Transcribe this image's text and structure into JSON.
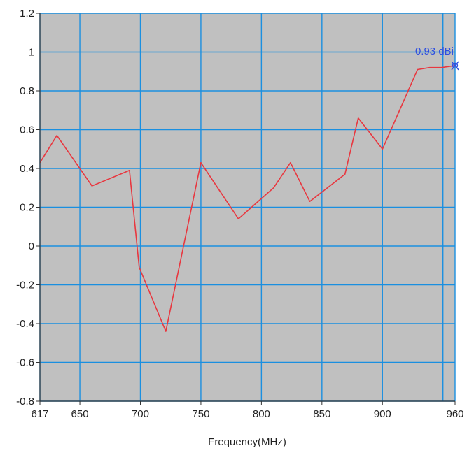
{
  "chart_data": {
    "type": "line",
    "xlabel": "Frequency(MHz)",
    "ylabel": "",
    "xlim": [
      617,
      960
    ],
    "ylim": [
      -0.8,
      1.2
    ],
    "x_ticks": [
      617,
      650,
      700,
      750,
      800,
      850,
      900,
      960
    ],
    "x_tick_labels": [
      "617",
      "650",
      "700",
      "750",
      "800",
      "850",
      "900",
      "960"
    ],
    "y_ticks": [
      -0.8,
      -0.6,
      -0.4,
      -0.2,
      0,
      0.2,
      0.4,
      0.6,
      0.8,
      1,
      1.2
    ],
    "y_tick_labels": [
      "-0.8",
      "-0.6",
      "-0.4",
      "-0.2",
      "0",
      "0.2",
      "0.4",
      "0.6",
      "0.8",
      "1",
      "1.2"
    ],
    "grid_x": [
      617,
      650,
      700,
      750,
      800,
      850,
      900,
      950,
      960
    ],
    "grid": true,
    "series": [
      {
        "color": "#e8373f",
        "x": [
          617,
          631,
          660,
          691,
          699,
          721,
          750,
          781,
          810,
          824,
          840,
          869,
          880,
          900,
          929,
          939,
          949,
          960
        ],
        "y": [
          0.43,
          0.57,
          0.31,
          0.39,
          -0.11,
          -0.44,
          0.43,
          0.14,
          0.3,
          0.43,
          0.23,
          0.37,
          0.66,
          0.5,
          0.91,
          0.92,
          0.92,
          0.93
        ]
      }
    ],
    "marker": {
      "x": 960,
      "y": 0.93,
      "label": "0.93 dBi",
      "color": "#2d4ee0"
    },
    "colors": {
      "plot_background": "#c0c0c0",
      "grid": "#1a8fe0",
      "axis": "#333333",
      "tick_text": "#222222"
    }
  }
}
